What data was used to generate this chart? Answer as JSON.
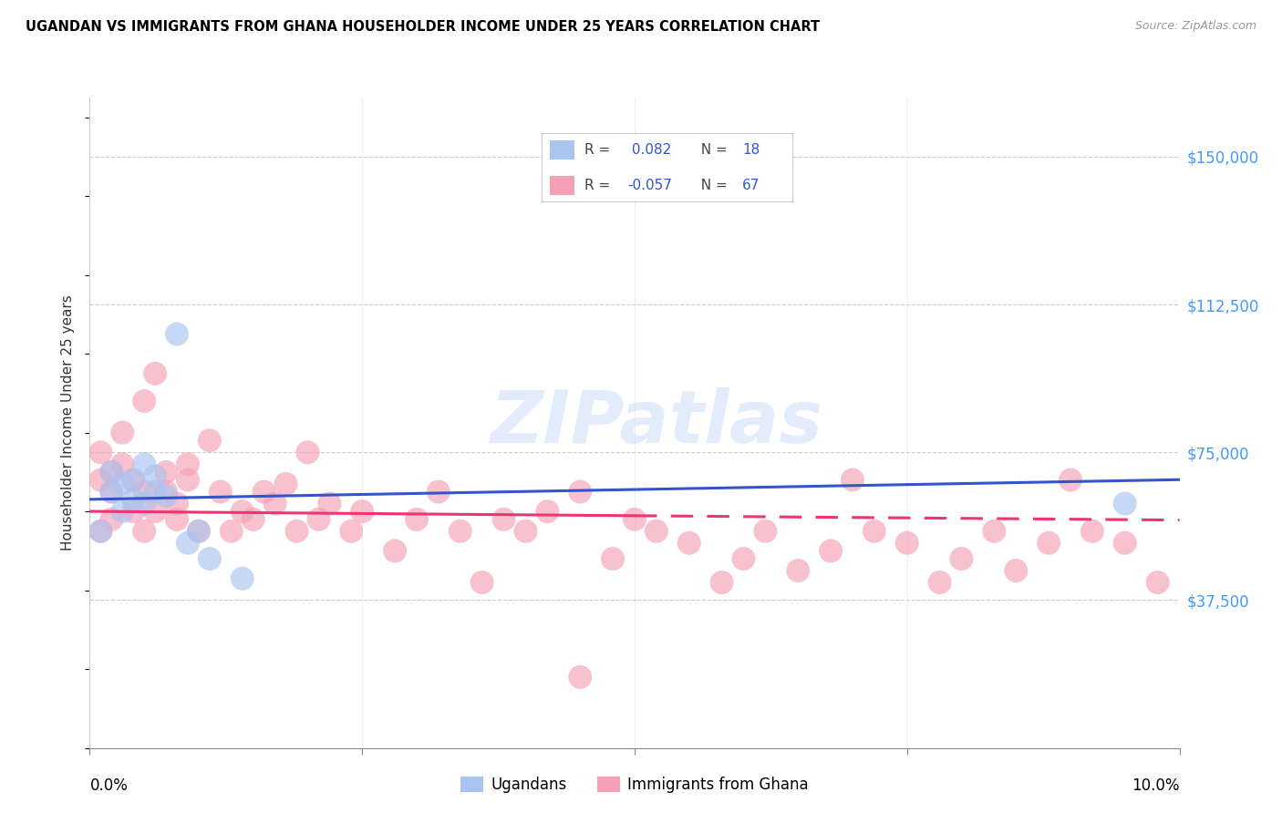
{
  "title": "UGANDAN VS IMMIGRANTS FROM GHANA HOUSEHOLDER INCOME UNDER 25 YEARS CORRELATION CHART",
  "source": "Source: ZipAtlas.com",
  "ylabel": "Householder Income Under 25 years",
  "xmin": 0.0,
  "xmax": 0.1,
  "ymin": 0,
  "ymax": 165000,
  "yticks": [
    37500,
    75000,
    112500,
    150000
  ],
  "ytick_labels": [
    "$37,500",
    "$75,000",
    "$112,500",
    "$150,000"
  ],
  "watermark_text": "ZIPatlas",
  "blue_color": "#aac4f0",
  "pink_color": "#f5a0b5",
  "line_blue": "#3355cc",
  "line_pink": "#ee3377",
  "legend_label_blue": "Ugandans",
  "legend_label_pink": "Immigrants from Ghana",
  "blue_r": 0.082,
  "pink_r": -0.057,
  "ugandan_x": [
    0.001,
    0.002,
    0.002,
    0.003,
    0.003,
    0.004,
    0.004,
    0.005,
    0.005,
    0.006,
    0.006,
    0.007,
    0.008,
    0.009,
    0.01,
    0.011,
    0.014,
    0.095
  ],
  "ugandan_y": [
    55000,
    65000,
    70000,
    60000,
    67000,
    63000,
    68000,
    62000,
    72000,
    65000,
    69000,
    64000,
    105000,
    52000,
    55000,
    48000,
    43000,
    62000
  ],
  "ghana_x": [
    0.001,
    0.001,
    0.001,
    0.002,
    0.002,
    0.002,
    0.003,
    0.003,
    0.004,
    0.004,
    0.005,
    0.005,
    0.005,
    0.006,
    0.006,
    0.007,
    0.007,
    0.008,
    0.008,
    0.009,
    0.009,
    0.01,
    0.011,
    0.012,
    0.013,
    0.014,
    0.015,
    0.016,
    0.017,
    0.018,
    0.019,
    0.02,
    0.021,
    0.022,
    0.024,
    0.025,
    0.028,
    0.03,
    0.032,
    0.034,
    0.036,
    0.038,
    0.04,
    0.042,
    0.045,
    0.048,
    0.05,
    0.052,
    0.055,
    0.058,
    0.06,
    0.062,
    0.065,
    0.068,
    0.07,
    0.072,
    0.075,
    0.078,
    0.08,
    0.083,
    0.085,
    0.088,
    0.09,
    0.092,
    0.095,
    0.098,
    0.045
  ],
  "ghana_y": [
    55000,
    68000,
    75000,
    58000,
    65000,
    70000,
    72000,
    80000,
    60000,
    68000,
    55000,
    88000,
    65000,
    60000,
    95000,
    65000,
    70000,
    58000,
    62000,
    68000,
    72000,
    55000,
    78000,
    65000,
    55000,
    60000,
    58000,
    65000,
    62000,
    67000,
    55000,
    75000,
    58000,
    62000,
    55000,
    60000,
    50000,
    58000,
    65000,
    55000,
    42000,
    58000,
    55000,
    60000,
    65000,
    48000,
    58000,
    55000,
    52000,
    42000,
    48000,
    55000,
    45000,
    50000,
    68000,
    55000,
    52000,
    42000,
    48000,
    55000,
    45000,
    52000,
    68000,
    55000,
    52000,
    42000,
    18000
  ]
}
